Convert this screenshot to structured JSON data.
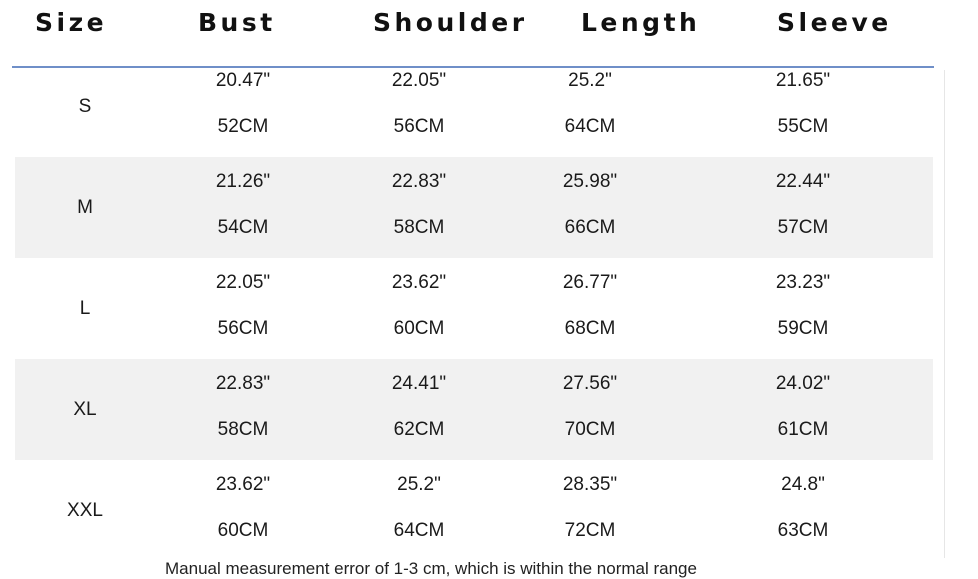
{
  "headers": {
    "size": "Size",
    "bust": "Bust",
    "shoulder": "Shoulder",
    "length": "Length",
    "sleeve": "Sleeve"
  },
  "rows": [
    {
      "size": "S",
      "bust_in": "20.47\"",
      "bust_cm": "52CM",
      "shoulder_in": "22.05\"",
      "shoulder_cm": "56CM",
      "length_in": "25.2\"",
      "length_cm": "64CM",
      "sleeve_in": "21.65\"",
      "sleeve_cm": "55CM"
    },
    {
      "size": "M",
      "bust_in": "21.26\"",
      "bust_cm": "54CM",
      "shoulder_in": "22.83\"",
      "shoulder_cm": "58CM",
      "length_in": "25.98\"",
      "length_cm": "66CM",
      "sleeve_in": "22.44\"",
      "sleeve_cm": "57CM"
    },
    {
      "size": "L",
      "bust_in": "22.05\"",
      "bust_cm": "56CM",
      "shoulder_in": "23.62\"",
      "shoulder_cm": "60CM",
      "length_in": "26.77\"",
      "length_cm": "68CM",
      "sleeve_in": "23.23\"",
      "sleeve_cm": "59CM"
    },
    {
      "size": "XL",
      "bust_in": "22.83\"",
      "bust_cm": "58CM",
      "shoulder_in": "24.41\"",
      "shoulder_cm": "62CM",
      "length_in": "27.56\"",
      "length_cm": "70CM",
      "sleeve_in": "24.02\"",
      "sleeve_cm": "61CM"
    },
    {
      "size": "XXL",
      "bust_in": "23.62\"",
      "bust_cm": "60CM",
      "shoulder_in": "25.2\"",
      "shoulder_cm": "64CM",
      "length_in": "28.35\"",
      "length_cm": "72CM",
      "sleeve_in": "24.8\"",
      "sleeve_cm": "63CM"
    }
  ],
  "footnote": "Manual measurement error of 1-3 cm, which is within the normal range"
}
